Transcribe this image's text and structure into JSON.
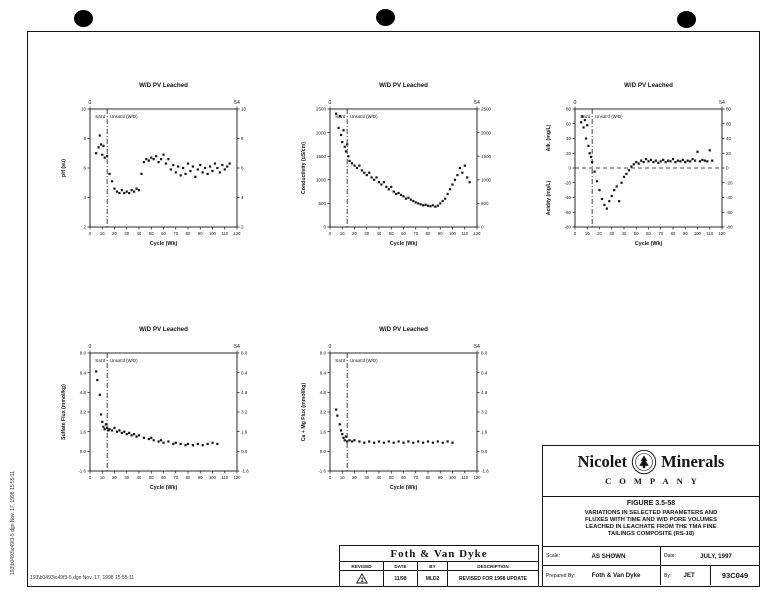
{
  "page": {
    "footer_file_text": "193\\b0493\\c49f3-5.dgn  Nov. 17, 1998  15:55:11",
    "side_file_text": "193\\b0493\\c49f3-5.dgn  Nov. 17, 1998  15:55:11"
  },
  "firm_box": {
    "name": "Foth & Van Dyke"
  },
  "revision_table": {
    "headers": [
      "REVISED",
      "DATE",
      "BY",
      "DESCRIPTION"
    ],
    "rows": [
      {
        "marker": "1",
        "date": "11/98",
        "by": "MLD2",
        "description": "REVISED FOR 1998 UPDATE"
      }
    ]
  },
  "title_block": {
    "company_word1": "Nicolet",
    "company_word2": "Minerals",
    "company_word3": "COMPANY",
    "figure_label": "FIGURE 3.5-58",
    "figure_title_lines": [
      "VARIATIONS IN SELECTED PARAMETERS AND",
      "FLUXES WITH TIME AND W/D PORE VOLUMES",
      "LEACHED IN LEACHATE FROM THE TMA FINE",
      "TAILINGS COMPOSITE (RS-18)"
    ],
    "scale_label": "Scale:",
    "scale_value": "AS SHOWN",
    "date_label": "Date:",
    "date_value": "JULY, 1997",
    "prepared_label": "Prepared By:",
    "prepared_value": "Foth & Van Dyke",
    "by_label": "By:",
    "by_value": "JET",
    "doc_number": "93C049"
  },
  "chart_data": [
    {
      "type": "scatter",
      "title": "W/D PV Leached",
      "top_axis": {
        "left_label": "0",
        "right_label": "54"
      },
      "xlabel": "Cycle (Wk)",
      "xlim": [
        0,
        120
      ],
      "xticks": [
        0,
        10,
        20,
        30,
        40,
        50,
        60,
        70,
        80,
        90,
        100,
        110,
        120
      ],
      "ylabel": "pH (su)",
      "ylim": [
        2,
        10
      ],
      "yticks": [
        2,
        4,
        6,
        8,
        10
      ],
      "ytick_labels": [
        "2",
        "4",
        "6",
        "8",
        "10"
      ],
      "divider_x": 14,
      "region_labels": {
        "left": "Sat'd",
        "right": "Unsat'd (W/D)"
      },
      "zero_line": false,
      "points": [
        [
          5,
          7
        ],
        [
          7,
          7.4
        ],
        [
          8,
          8.2
        ],
        [
          9,
          7.6
        ],
        [
          10,
          6.9
        ],
        [
          11,
          7.5
        ],
        [
          12,
          6.7
        ],
        [
          14,
          6.8
        ],
        [
          16,
          5.6
        ],
        [
          18,
          5.1
        ],
        [
          20,
          4.6
        ],
        [
          22,
          4.4
        ],
        [
          24,
          4.3
        ],
        [
          26,
          4.5
        ],
        [
          28,
          4.3
        ],
        [
          30,
          4.4
        ],
        [
          32,
          4.3
        ],
        [
          34,
          4.5
        ],
        [
          36,
          4.4
        ],
        [
          38,
          4.6
        ],
        [
          40,
          4.5
        ],
        [
          42,
          5.6
        ],
        [
          44,
          6.4
        ],
        [
          46,
          6.6
        ],
        [
          48,
          6.5
        ],
        [
          50,
          6.7
        ],
        [
          52,
          6.6
        ],
        [
          54,
          6.8
        ],
        [
          56,
          6.4
        ],
        [
          58,
          6.6
        ],
        [
          60,
          6.9
        ],
        [
          62,
          6.3
        ],
        [
          64,
          6.6
        ],
        [
          66,
          5.9
        ],
        [
          68,
          6.2
        ],
        [
          70,
          5.7
        ],
        [
          72,
          6.1
        ],
        [
          74,
          5.5
        ],
        [
          76,
          6
        ],
        [
          78,
          5.6
        ],
        [
          80,
          6.3
        ],
        [
          82,
          5.8
        ],
        [
          84,
          6.1
        ],
        [
          86,
          5.4
        ],
        [
          88,
          5.9
        ],
        [
          90,
          6.2
        ],
        [
          92,
          5.7
        ],
        [
          94,
          6
        ],
        [
          96,
          5.6
        ],
        [
          98,
          6.1
        ],
        [
          100,
          5.8
        ],
        [
          102,
          6.3
        ],
        [
          104,
          6
        ],
        [
          106,
          5.7
        ],
        [
          108,
          6.2
        ],
        [
          110,
          5.9
        ],
        [
          112,
          6.1
        ],
        [
          114,
          6.3
        ]
      ]
    },
    {
      "type": "scatter",
      "title": "W/D PV Leached",
      "top_axis": {
        "left_label": "0",
        "right_label": "54"
      },
      "xlabel": "Cycle (Wk)",
      "xlim": [
        0,
        120
      ],
      "xticks": [
        0,
        10,
        20,
        30,
        40,
        50,
        60,
        70,
        80,
        90,
        100,
        110,
        120
      ],
      "ylabel": "Conductivity (uS/cm)",
      "ylim": [
        0,
        2500
      ],
      "yticks": [
        0,
        500,
        1000,
        1500,
        2000,
        2500
      ],
      "ytick_labels": [
        "0",
        "500",
        "1000",
        "1500",
        "2000",
        "2500"
      ],
      "divider_x": 14,
      "region_labels": {
        "left": "Sat'd",
        "right": "Unsat'd (W/D)"
      },
      "zero_line": false,
      "points": [
        [
          5,
          2400
        ],
        [
          7,
          2100
        ],
        [
          8,
          2350
        ],
        [
          9,
          1950
        ],
        [
          10,
          1800
        ],
        [
          11,
          2050
        ],
        [
          12,
          1700
        ],
        [
          13,
          1600
        ],
        [
          14,
          1750
        ],
        [
          15,
          1500
        ],
        [
          16,
          1400
        ],
        [
          18,
          1350
        ],
        [
          20,
          1300
        ],
        [
          22,
          1250
        ],
        [
          24,
          1300
        ],
        [
          26,
          1200
        ],
        [
          28,
          1150
        ],
        [
          30,
          1100
        ],
        [
          32,
          1150
        ],
        [
          34,
          1050
        ],
        [
          36,
          1000
        ],
        [
          38,
          1050
        ],
        [
          40,
          950
        ],
        [
          42,
          900
        ],
        [
          44,
          950
        ],
        [
          46,
          850
        ],
        [
          48,
          800
        ],
        [
          50,
          850
        ],
        [
          52,
          750
        ],
        [
          54,
          700
        ],
        [
          56,
          720
        ],
        [
          58,
          680
        ],
        [
          60,
          650
        ],
        [
          62,
          600
        ],
        [
          64,
          620
        ],
        [
          66,
          580
        ],
        [
          68,
          550
        ],
        [
          70,
          520
        ],
        [
          72,
          500
        ],
        [
          74,
          480
        ],
        [
          76,
          460
        ],
        [
          78,
          470
        ],
        [
          80,
          450
        ],
        [
          82,
          440
        ],
        [
          84,
          460
        ],
        [
          86,
          430
        ],
        [
          88,
          450
        ],
        [
          90,
          500
        ],
        [
          92,
          550
        ],
        [
          94,
          600
        ],
        [
          96,
          700
        ],
        [
          98,
          800
        ],
        [
          100,
          900
        ],
        [
          102,
          1000
        ],
        [
          104,
          1100
        ],
        [
          106,
          1250
        ],
        [
          108,
          1150
        ],
        [
          110,
          1300
        ],
        [
          112,
          1050
        ],
        [
          114,
          950
        ]
      ]
    },
    {
      "type": "scatter",
      "title": "W/D PV Leached",
      "top_axis": {
        "left_label": "0",
        "right_label": "54"
      },
      "xlabel": "Cycle (Wk)",
      "xlim": [
        0,
        120
      ],
      "xticks": [
        0,
        10,
        20,
        30,
        40,
        50,
        60,
        70,
        80,
        90,
        100,
        110,
        120
      ],
      "ylabel_top": "Alk. (mg/L)",
      "ylabel_bottom": "Acidity (mg/L)",
      "ylim": [
        -80,
        80
      ],
      "yticks": [
        -80,
        -60,
        -40,
        -20,
        0,
        20,
        40,
        60,
        80
      ],
      "ytick_labels": [
        "-80",
        "-60",
        "-40",
        "-20",
        "0",
        "20",
        "40",
        "60",
        "80"
      ],
      "divider_x": 14,
      "region_labels": {
        "left": "Sat'd",
        "right": "Unsat'd (W/D)"
      },
      "zero_line": true,
      "points": [
        [
          5,
          62
        ],
        [
          6,
          70
        ],
        [
          7,
          55
        ],
        [
          8,
          65
        ],
        [
          9,
          40
        ],
        [
          10,
          58
        ],
        [
          11,
          30
        ],
        [
          12,
          20
        ],
        [
          13,
          15
        ],
        [
          14,
          8
        ],
        [
          16,
          -5
        ],
        [
          18,
          -18
        ],
        [
          20,
          -30
        ],
        [
          22,
          -42
        ],
        [
          24,
          -50
        ],
        [
          26,
          -55
        ],
        [
          28,
          -45
        ],
        [
          30,
          -38
        ],
        [
          32,
          -30
        ],
        [
          34,
          -25
        ],
        [
          36,
          -45
        ],
        [
          38,
          -20
        ],
        [
          40,
          -12
        ],
        [
          42,
          -8
        ],
        [
          44,
          -3
        ],
        [
          46,
          2
        ],
        [
          48,
          5
        ],
        [
          50,
          8
        ],
        [
          52,
          6
        ],
        [
          54,
          10
        ],
        [
          56,
          8
        ],
        [
          58,
          12
        ],
        [
          60,
          9
        ],
        [
          62,
          11
        ],
        [
          64,
          8
        ],
        [
          66,
          10
        ],
        [
          68,
          7
        ],
        [
          70,
          9
        ],
        [
          72,
          11
        ],
        [
          74,
          8
        ],
        [
          76,
          10
        ],
        [
          78,
          9
        ],
        [
          80,
          12
        ],
        [
          82,
          8
        ],
        [
          84,
          10
        ],
        [
          86,
          9
        ],
        [
          88,
          11
        ],
        [
          90,
          8
        ],
        [
          92,
          10
        ],
        [
          94,
          9
        ],
        [
          96,
          12
        ],
        [
          98,
          10
        ],
        [
          100,
          22
        ],
        [
          102,
          9
        ],
        [
          104,
          11
        ],
        [
          106,
          10
        ],
        [
          108,
          9
        ],
        [
          110,
          24
        ],
        [
          112,
          10
        ]
      ]
    },
    {
      "type": "scatter",
      "title": "W/D PV Leached",
      "top_axis": {
        "left_label": "0",
        "right_label": "54"
      },
      "xlabel": "Cycle (Wk)",
      "xlim": [
        0,
        120
      ],
      "xticks": [
        0,
        10,
        20,
        30,
        40,
        50,
        60,
        70,
        80,
        90,
        100,
        110,
        120
      ],
      "ylabel": "Sulfate Flux (mmol/kg)",
      "ylim": [
        -1.6,
        8.0
      ],
      "yticks": [
        -1.6,
        0.0,
        1.6,
        3.2,
        4.8,
        6.4,
        8.0
      ],
      "ytick_labels": [
        "-1.6",
        "0.0",
        "1.6",
        "3.2",
        "4.8",
        "6.4",
        "8.0"
      ],
      "divider_x": 14,
      "region_labels": {
        "left": "Sat'd",
        "right": "Unsat'd (W/D)"
      },
      "zero_line": false,
      "points": [
        [
          5,
          6.5
        ],
        [
          6,
          5.8
        ],
        [
          8,
          4.6
        ],
        [
          9,
          3
        ],
        [
          10,
          2.4
        ],
        [
          11,
          2
        ],
        [
          12,
          1.8
        ],
        [
          13,
          2.2
        ],
        [
          14,
          1.9
        ],
        [
          15,
          1.7
        ],
        [
          16,
          1.8
        ],
        [
          18,
          1.7
        ],
        [
          20,
          1.9
        ],
        [
          22,
          1.6
        ],
        [
          24,
          1.7
        ],
        [
          26,
          1.5
        ],
        [
          28,
          1.6
        ],
        [
          30,
          1.4
        ],
        [
          32,
          1.5
        ],
        [
          34,
          1.3
        ],
        [
          36,
          1.4
        ],
        [
          38,
          1.2
        ],
        [
          40,
          1.3
        ],
        [
          44,
          1.1
        ],
        [
          48,
          1
        ],
        [
          50,
          1.1
        ],
        [
          52,
          0.9
        ],
        [
          56,
          0.8
        ],
        [
          58,
          0.9
        ],
        [
          60,
          0.7
        ],
        [
          64,
          0.8
        ],
        [
          68,
          0.6
        ],
        [
          70,
          0.7
        ],
        [
          74,
          0.6
        ],
        [
          78,
          0.5
        ],
        [
          80,
          0.6
        ],
        [
          84,
          0.5
        ],
        [
          88,
          0.6
        ],
        [
          92,
          0.5
        ],
        [
          96,
          0.6
        ],
        [
          100,
          0.7
        ],
        [
          104,
          0.6
        ]
      ]
    },
    {
      "type": "scatter",
      "title": "W/D PV Leached",
      "top_axis": {
        "left_label": "0",
        "right_label": "54"
      },
      "xlabel": "Cycle (Wk)",
      "xlim": [
        0,
        120
      ],
      "xticks": [
        0,
        10,
        20,
        30,
        40,
        50,
        60,
        70,
        80,
        90,
        100,
        110,
        120
      ],
      "ylabel": "Ca + Mg Flux (mmol/kg)",
      "ylim": [
        -1.6,
        8.0
      ],
      "yticks": [
        -1.6,
        0.0,
        1.6,
        3.2,
        4.8,
        6.4,
        8.0
      ],
      "ytick_labels": [
        "-1.6",
        "0.0",
        "1.6",
        "3.2",
        "4.8",
        "6.4",
        "8.0"
      ],
      "divider_x": 14,
      "region_labels": {
        "left": "Sat'd",
        "right": "Unsat'd (W/D)"
      },
      "zero_line": false,
      "points": [
        [
          5,
          3.4
        ],
        [
          6,
          2.9
        ],
        [
          8,
          2.2
        ],
        [
          9,
          1.7
        ],
        [
          10,
          1.4
        ],
        [
          11,
          1.1
        ],
        [
          12,
          0.9
        ],
        [
          13,
          1.2
        ],
        [
          14,
          0.8
        ],
        [
          16,
          0.9
        ],
        [
          18,
          0.8
        ],
        [
          20,
          0.9
        ],
        [
          24,
          0.8
        ],
        [
          28,
          0.7
        ],
        [
          32,
          0.8
        ],
        [
          36,
          0.7
        ],
        [
          40,
          0.8
        ],
        [
          44,
          0.7
        ],
        [
          48,
          0.8
        ],
        [
          52,
          0.7
        ],
        [
          56,
          0.8
        ],
        [
          60,
          0.7
        ],
        [
          64,
          0.8
        ],
        [
          68,
          0.7
        ],
        [
          72,
          0.8
        ],
        [
          76,
          0.7
        ],
        [
          80,
          0.8
        ],
        [
          84,
          0.7
        ],
        [
          88,
          0.8
        ],
        [
          92,
          0.7
        ],
        [
          96,
          0.8
        ],
        [
          100,
          0.7
        ]
      ]
    }
  ]
}
